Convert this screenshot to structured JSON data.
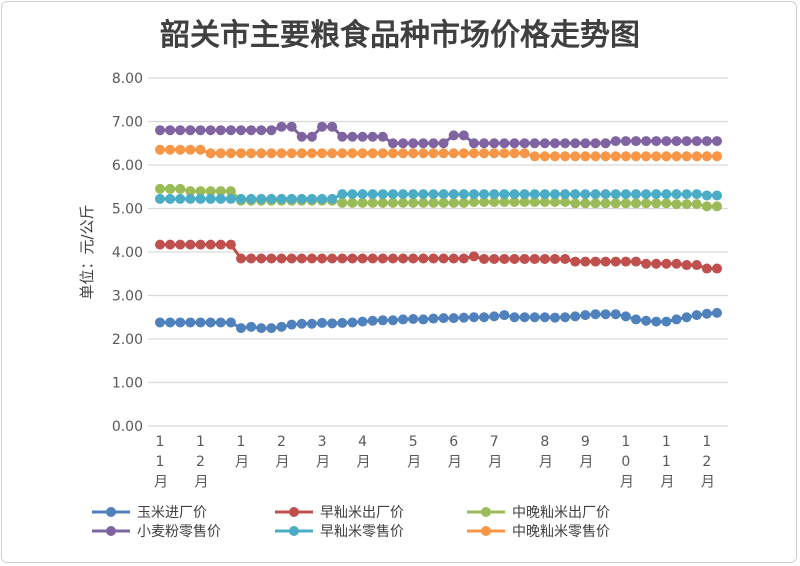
{
  "chart_data": {
    "type": "line",
    "title": "韶关市主要粮食品种市场价格走势图",
    "ylabel": "单位：元/公斤",
    "xlabel": "",
    "ylim": [
      0,
      8
    ],
    "yticks": [
      "0.00",
      "1.00",
      "2.00",
      "3.00",
      "4.00",
      "5.00",
      "6.00",
      "7.00",
      "8.00"
    ],
    "grid": true,
    "legend_position": "bottom",
    "x_tick_labels": [
      {
        "index": 0,
        "label": "11月"
      },
      {
        "index": 4,
        "label": "12月"
      },
      {
        "index": 8,
        "label": "1月"
      },
      {
        "index": 12,
        "label": "2月"
      },
      {
        "index": 16,
        "label": "3月"
      },
      {
        "index": 20,
        "label": "4月"
      },
      {
        "index": 25,
        "label": "5月"
      },
      {
        "index": 29,
        "label": "6月"
      },
      {
        "index": 33,
        "label": "7月"
      },
      {
        "index": 38,
        "label": "8月"
      },
      {
        "index": 42,
        "label": "9月"
      },
      {
        "index": 46,
        "label": "10月"
      },
      {
        "index": 50,
        "label": "11月"
      },
      {
        "index": 54,
        "label": "12月"
      }
    ],
    "series": [
      {
        "name": "玉米进厂价",
        "color": "#4f81bd",
        "values": [
          2.38,
          2.38,
          2.38,
          2.38,
          2.38,
          2.38,
          2.38,
          2.38,
          2.25,
          2.28,
          2.25,
          2.25,
          2.28,
          2.33,
          2.35,
          2.35,
          2.37,
          2.36,
          2.37,
          2.38,
          2.4,
          2.42,
          2.43,
          2.43,
          2.45,
          2.46,
          2.45,
          2.47,
          2.48,
          2.48,
          2.49,
          2.5,
          2.5,
          2.52,
          2.55,
          2.5,
          2.5,
          2.5,
          2.5,
          2.49,
          2.5,
          2.52,
          2.55,
          2.57,
          2.57,
          2.57,
          2.52,
          2.45,
          2.42,
          2.4,
          2.4,
          2.45,
          2.5,
          2.55,
          2.58,
          2.6
        ]
      },
      {
        "name": "早籼米出厂价",
        "color": "#c0504d",
        "values": [
          4.17,
          4.17,
          4.17,
          4.17,
          4.17,
          4.17,
          4.17,
          4.17,
          3.85,
          3.85,
          3.85,
          3.85,
          3.85,
          3.85,
          3.85,
          3.85,
          3.85,
          3.85,
          3.85,
          3.85,
          3.85,
          3.85,
          3.85,
          3.85,
          3.85,
          3.85,
          3.85,
          3.85,
          3.85,
          3.85,
          3.85,
          3.9,
          3.84,
          3.84,
          3.84,
          3.84,
          3.84,
          3.84,
          3.84,
          3.84,
          3.84,
          3.78,
          3.78,
          3.78,
          3.78,
          3.78,
          3.78,
          3.78,
          3.73,
          3.73,
          3.73,
          3.73,
          3.7,
          3.7,
          3.62,
          3.62
        ]
      },
      {
        "name": "中晚籼米出厂价",
        "color": "#9bbb59",
        "values": [
          5.45,
          5.45,
          5.45,
          5.4,
          5.4,
          5.4,
          5.4,
          5.4,
          5.18,
          5.18,
          5.18,
          5.18,
          5.18,
          5.18,
          5.18,
          5.18,
          5.18,
          5.18,
          5.13,
          5.13,
          5.13,
          5.13,
          5.13,
          5.13,
          5.13,
          5.13,
          5.13,
          5.13,
          5.13,
          5.13,
          5.13,
          5.15,
          5.15,
          5.15,
          5.15,
          5.15,
          5.15,
          5.15,
          5.15,
          5.15,
          5.15,
          5.12,
          5.12,
          5.12,
          5.12,
          5.12,
          5.12,
          5.12,
          5.12,
          5.12,
          5.12,
          5.1,
          5.1,
          5.1,
          5.05,
          5.05
        ]
      },
      {
        "name": "小麦粉零售价",
        "color": "#8064a2",
        "values": [
          6.8,
          6.8,
          6.8,
          6.8,
          6.8,
          6.8,
          6.8,
          6.8,
          6.8,
          6.8,
          6.8,
          6.8,
          6.88,
          6.88,
          6.65,
          6.65,
          6.88,
          6.88,
          6.65,
          6.65,
          6.65,
          6.65,
          6.65,
          6.5,
          6.5,
          6.5,
          6.5,
          6.5,
          6.5,
          6.68,
          6.68,
          6.5,
          6.5,
          6.5,
          6.5,
          6.5,
          6.5,
          6.5,
          6.5,
          6.5,
          6.5,
          6.5,
          6.5,
          6.5,
          6.5,
          6.55,
          6.55,
          6.55,
          6.55,
          6.55,
          6.55,
          6.55,
          6.55,
          6.55,
          6.55,
          6.55
        ]
      },
      {
        "name": "早籼米零售价",
        "color": "#4bacc6",
        "values": [
          5.22,
          5.22,
          5.22,
          5.22,
          5.22,
          5.22,
          5.22,
          5.22,
          5.22,
          5.22,
          5.22,
          5.22,
          5.22,
          5.22,
          5.22,
          5.22,
          5.22,
          5.22,
          5.33,
          5.33,
          5.33,
          5.33,
          5.33,
          5.33,
          5.33,
          5.33,
          5.33,
          5.33,
          5.33,
          5.33,
          5.33,
          5.33,
          5.33,
          5.33,
          5.33,
          5.33,
          5.33,
          5.33,
          5.33,
          5.33,
          5.33,
          5.33,
          5.33,
          5.33,
          5.33,
          5.33,
          5.33,
          5.33,
          5.33,
          5.33,
          5.33,
          5.33,
          5.33,
          5.33,
          5.3,
          5.3
        ]
      },
      {
        "name": "中晚籼米零售价",
        "color": "#f79646",
        "values": [
          6.35,
          6.35,
          6.35,
          6.35,
          6.35,
          6.27,
          6.27,
          6.27,
          6.27,
          6.27,
          6.27,
          6.27,
          6.27,
          6.27,
          6.27,
          6.27,
          6.27,
          6.27,
          6.27,
          6.27,
          6.27,
          6.27,
          6.27,
          6.27,
          6.27,
          6.27,
          6.27,
          6.27,
          6.27,
          6.27,
          6.27,
          6.27,
          6.27,
          6.27,
          6.27,
          6.27,
          6.27,
          6.2,
          6.2,
          6.2,
          6.2,
          6.2,
          6.2,
          6.2,
          6.2,
          6.2,
          6.2,
          6.2,
          6.2,
          6.2,
          6.2,
          6.2,
          6.2,
          6.2,
          6.2,
          6.2
        ]
      }
    ]
  }
}
